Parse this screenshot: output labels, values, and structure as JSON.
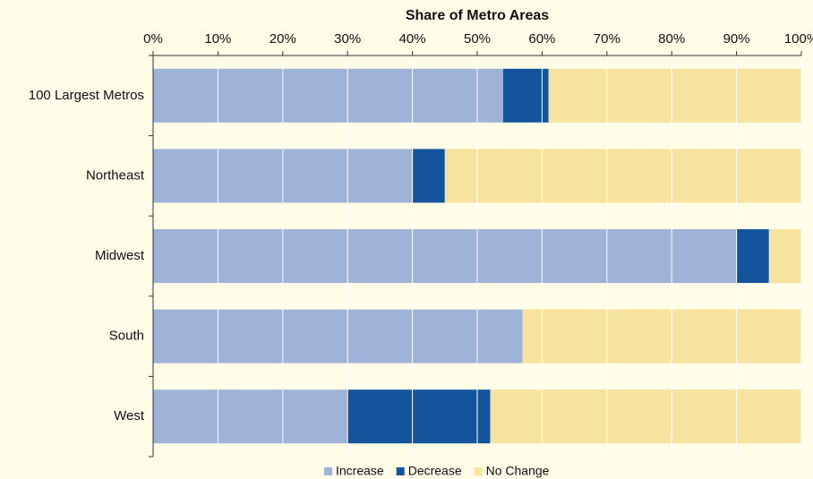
{
  "chart_data": {
    "type": "stacked_bar_horizontal",
    "title": "Share of Metro Areas",
    "categories": [
      "100 Largest Metros",
      "Northeast",
      "Midwest",
      "South",
      "West"
    ],
    "series": [
      {
        "name": "Increase",
        "color": "#9db3d8",
        "values": [
          54,
          40,
          90,
          57,
          30
        ]
      },
      {
        "name": "Decrease",
        "color": "#14549c",
        "values": [
          7,
          5,
          5,
          0,
          22
        ]
      },
      {
        "name": "No Change",
        "color": "#f6e39e",
        "values": [
          39,
          55,
          5,
          43,
          48
        ]
      }
    ],
    "xlim": [
      0,
      100
    ],
    "xticks": [
      {
        "value": 0,
        "label": "0%"
      },
      {
        "value": 10,
        "label": "10%"
      },
      {
        "value": 20,
        "label": "20%"
      },
      {
        "value": 30,
        "label": "30%"
      },
      {
        "value": 40,
        "label": "40%"
      },
      {
        "value": 50,
        "label": "50%"
      },
      {
        "value": 60,
        "label": "60%"
      },
      {
        "value": 70,
        "label": "70%"
      },
      {
        "value": 80,
        "label": "80%"
      },
      {
        "value": 90,
        "label": "90%"
      },
      {
        "value": 100,
        "label": "100%"
      }
    ],
    "grid": true,
    "legend": "bottom"
  }
}
